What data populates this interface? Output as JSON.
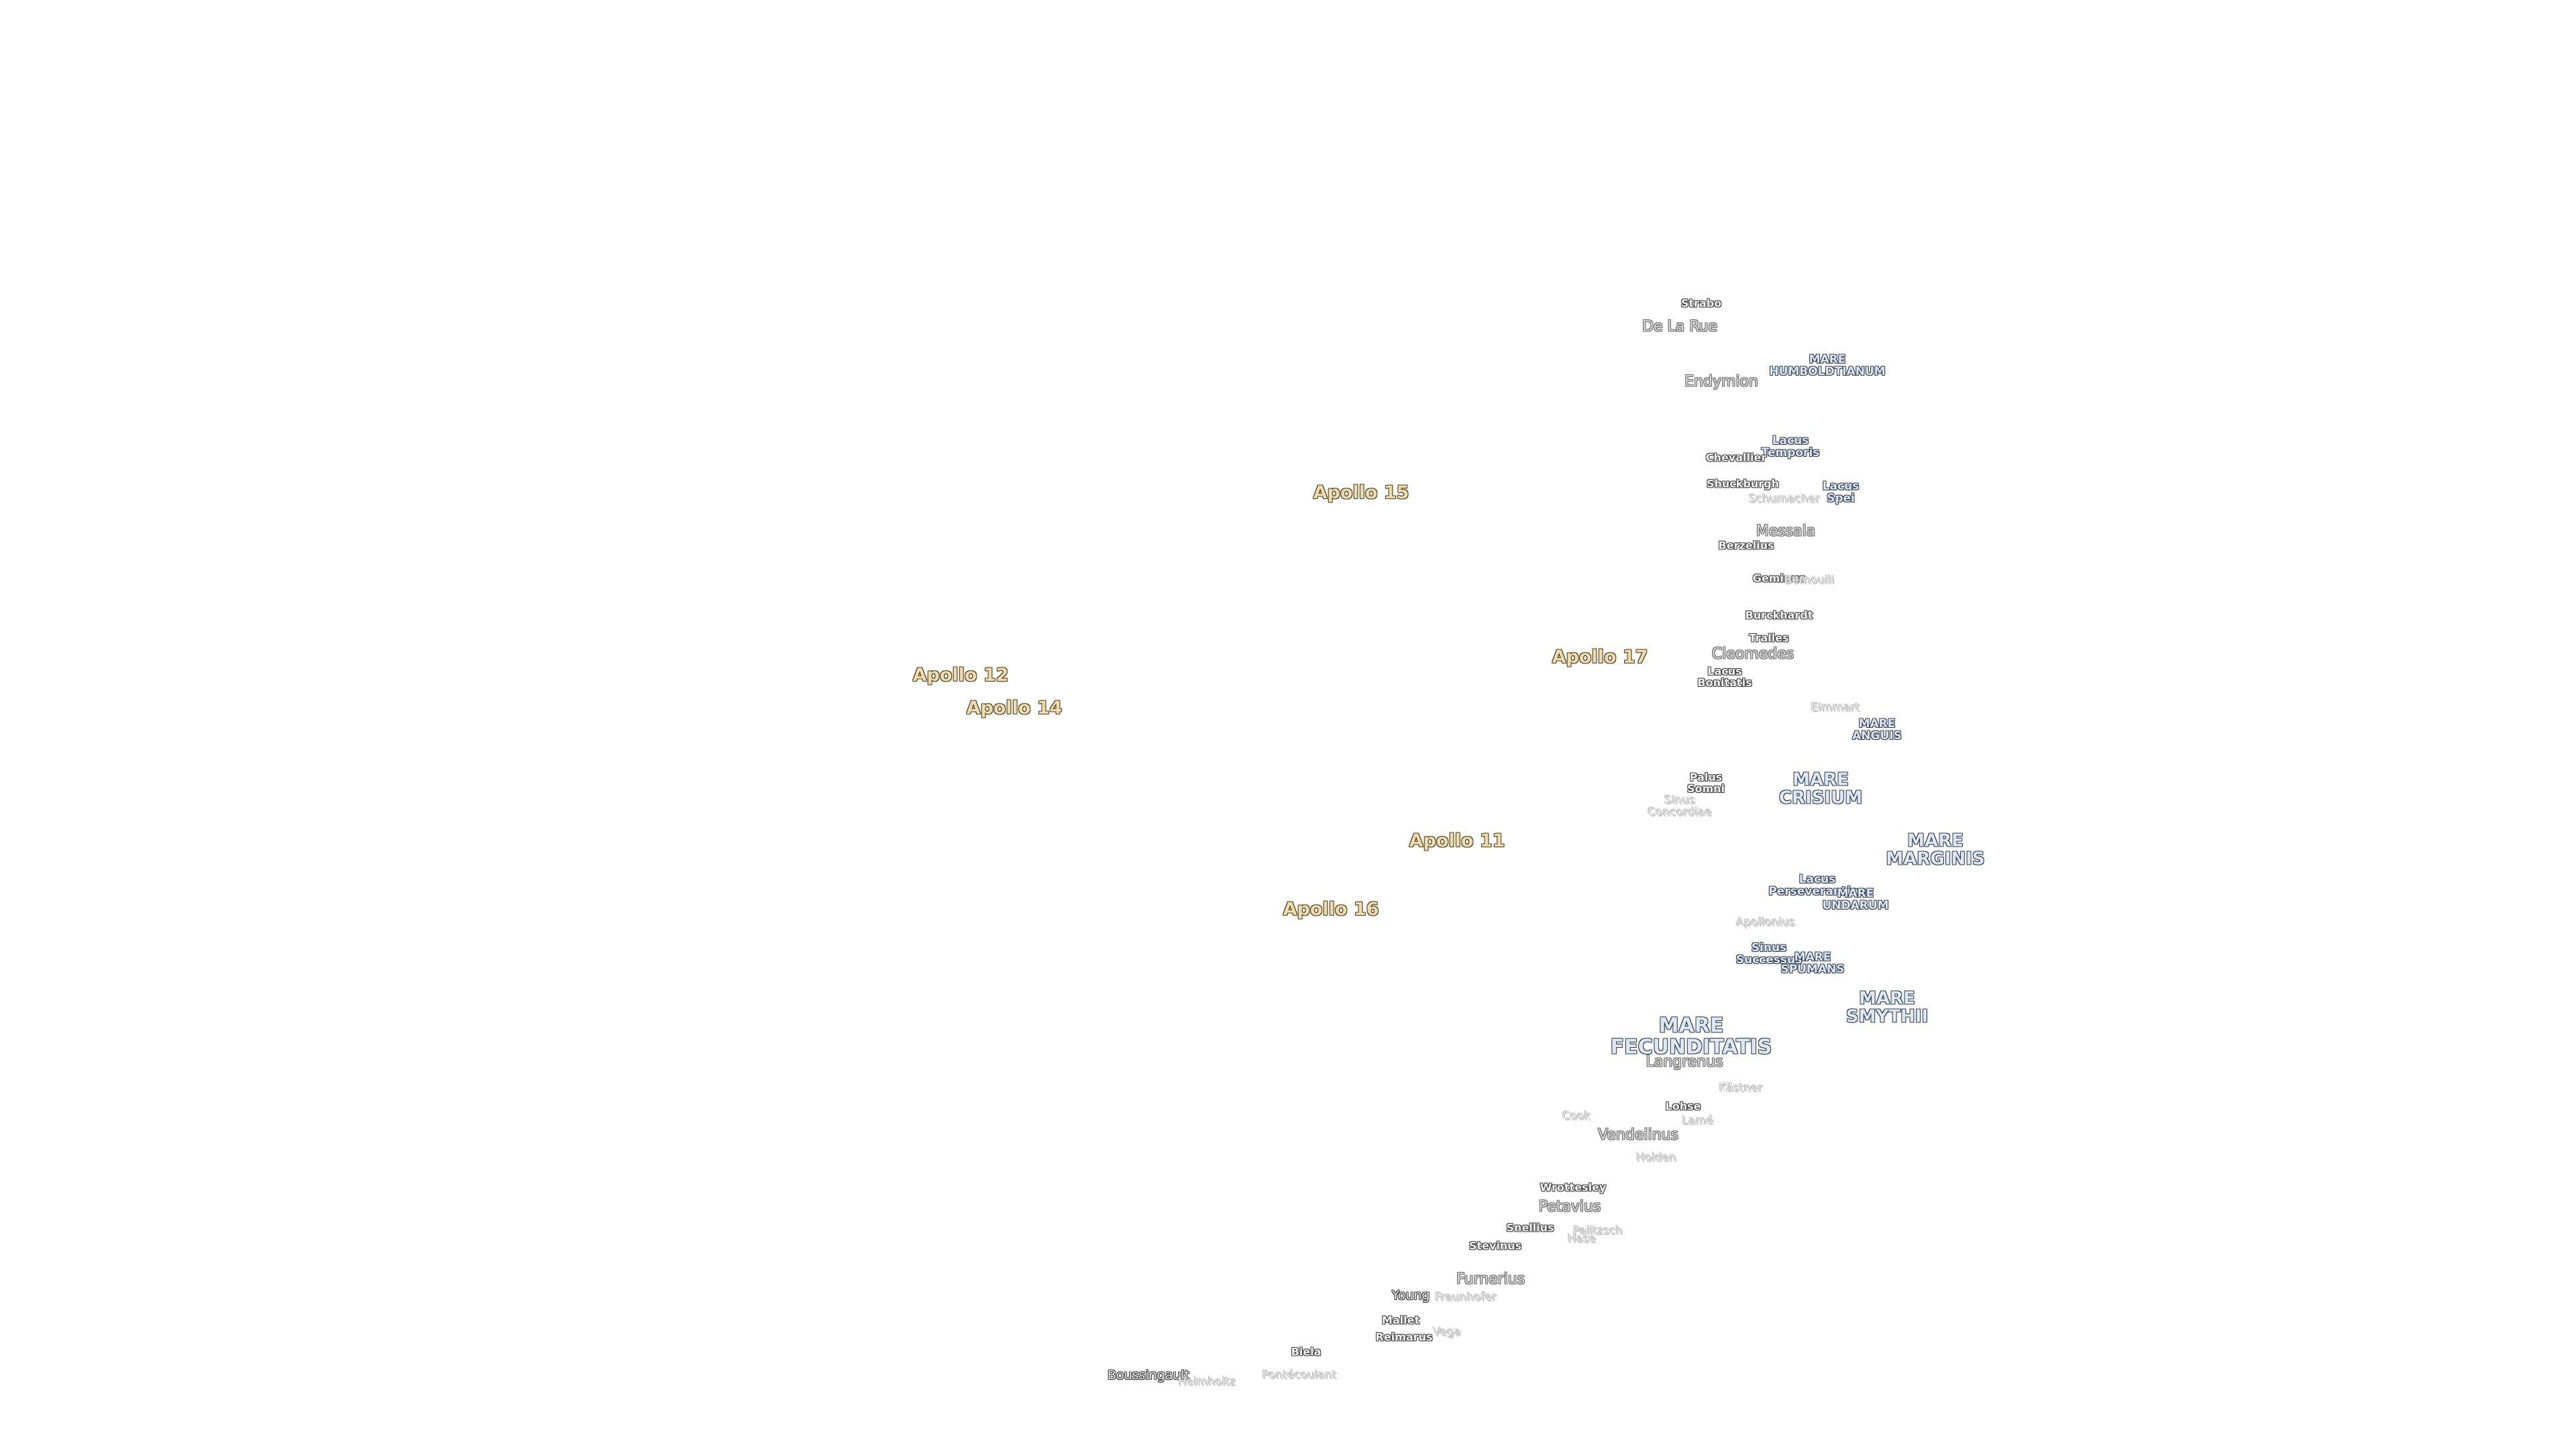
{
  "labels": [
    {
      "text": "Strabo"
    },
    {
      "text": "De La Rue"
    },
    {
      "text": "MARE HUMBOLDTIANUM"
    },
    {
      "text": "Endymion"
    },
    {
      "text": "Lacus Temporis"
    },
    {
      "text": "Chevallier"
    },
    {
      "text": "Shuckburgh"
    },
    {
      "text": "Schumacher"
    },
    {
      "text": "Lacus Spei"
    },
    {
      "text": "Messala"
    },
    {
      "text": "Berzelius"
    },
    {
      "text": "Geminus"
    },
    {
      "text": "Bernoulli"
    },
    {
      "text": "Burckhardt"
    },
    {
      "text": "Apollo 15"
    },
    {
      "text": "Apollo 12"
    },
    {
      "text": "Apollo 14"
    },
    {
      "text": "Apollo 17"
    },
    {
      "text": "Apollo 11"
    },
    {
      "text": "Apollo 16"
    },
    {
      "text": "Tralles"
    },
    {
      "text": "Cleomedes"
    },
    {
      "text": "Lacus Bonitatis"
    },
    {
      "text": "Eimmart"
    },
    {
      "text": "MARE ANGUIS"
    },
    {
      "text": "Palus Somni"
    },
    {
      "text": "MARE CRISIUM"
    },
    {
      "text": "Sinus Concordiae"
    },
    {
      "text": "MARE MARGINIS"
    },
    {
      "text": "Lacus Perseverantiae"
    },
    {
      "text": "MARE UNDARUM"
    },
    {
      "text": "Apollonius"
    },
    {
      "text": "Sinus Successus"
    },
    {
      "text": "MARE SPUMANS"
    },
    {
      "text": "MARE SMYTHII"
    },
    {
      "text": "MARE FECUNDITATIS"
    },
    {
      "text": "Langrenus"
    },
    {
      "text": "Kästner"
    },
    {
      "text": "Lohse"
    },
    {
      "text": "Lamé"
    },
    {
      "text": "Cook"
    },
    {
      "text": "Vendelinus"
    },
    {
      "text": "Holden"
    },
    {
      "text": "Wrottesley"
    },
    {
      "text": "Petavius"
    },
    {
      "text": "Snellius"
    },
    {
      "text": "Palitzsch"
    },
    {
      "text": "Hase"
    },
    {
      "text": "Stevinus"
    },
    {
      "text": "Furnerius"
    },
    {
      "text": "Young"
    },
    {
      "text": "Fraunhofer"
    },
    {
      "text": "Mallet"
    },
    {
      "text": "Reimarus"
    },
    {
      "text": "Vega"
    },
    {
      "text": "Biela"
    },
    {
      "text": "Boussingault"
    },
    {
      "text": "Helmholtz"
    },
    {
      "text": "Pontécoulant"
    }
  ]
}
